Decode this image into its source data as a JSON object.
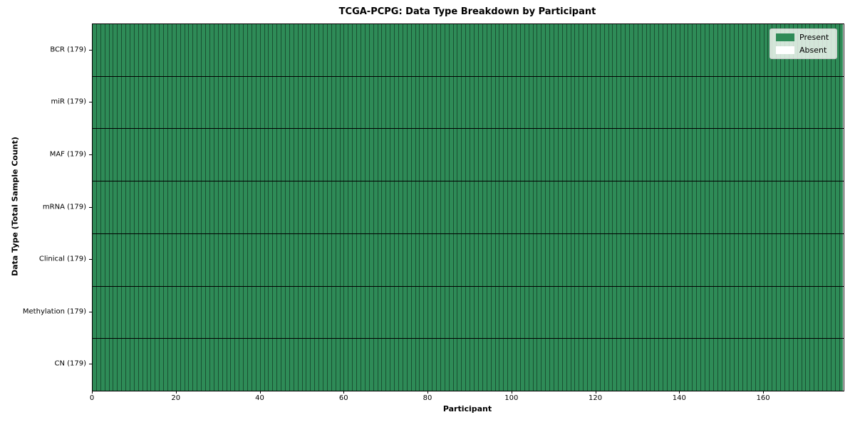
{
  "chart_data": {
    "type": "heatmap",
    "title": "TCGA-PCPG: Data Type Breakdown by Participant",
    "xlabel": "Participant",
    "ylabel": "Data Type (Total Sample Count)",
    "n_participants": 179,
    "xlim": [
      0,
      179
    ],
    "x_ticks": [
      0,
      20,
      40,
      60,
      80,
      100,
      120,
      140,
      160
    ],
    "rows": [
      {
        "label": "BCR (179)",
        "data_type": "BCR",
        "total_samples": 179,
        "present_count": 179,
        "absent_count": 0
      },
      {
        "label": "miR (179)",
        "data_type": "miR",
        "total_samples": 179,
        "present_count": 179,
        "absent_count": 0
      },
      {
        "label": "MAF (179)",
        "data_type": "MAF",
        "total_samples": 179,
        "present_count": 179,
        "absent_count": 0
      },
      {
        "label": "mRNA (179)",
        "data_type": "mRNA",
        "total_samples": 179,
        "present_count": 179,
        "absent_count": 0
      },
      {
        "label": "Clinical (179)",
        "data_type": "Clinical",
        "total_samples": 179,
        "present_count": 179,
        "absent_count": 0
      },
      {
        "label": "Methylation (179)",
        "data_type": "Methylation",
        "total_samples": 179,
        "present_count": 179,
        "absent_count": 0
      },
      {
        "label": "CN (179)",
        "data_type": "CN",
        "total_samples": 179,
        "present_count": 179,
        "absent_count": 0
      }
    ],
    "legend": {
      "position": "upper right",
      "entries": [
        {
          "label": "Present",
          "color": "#2e8b57"
        },
        {
          "label": "Absent",
          "color": "#ffffff"
        }
      ]
    },
    "colors": {
      "present": "#2e8b57",
      "absent": "#ffffff",
      "column_divider": "rgba(0,0,0,0.42)",
      "row_divider": "#000000"
    },
    "grid": true
  }
}
